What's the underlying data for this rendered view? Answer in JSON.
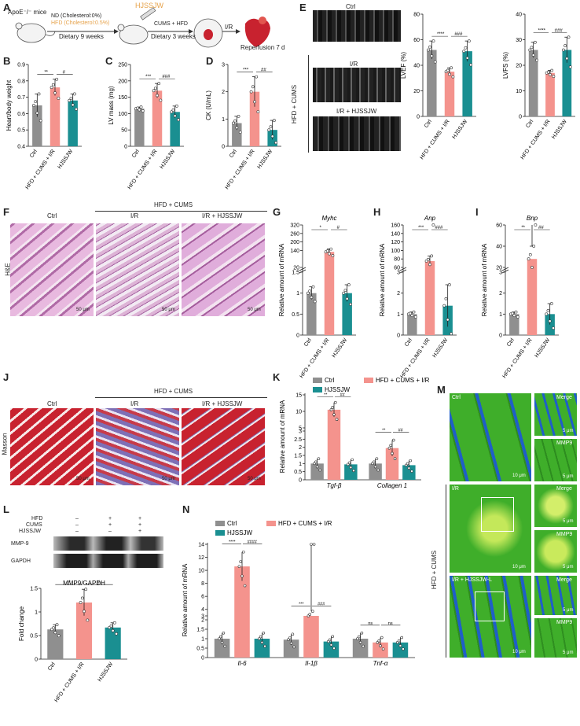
{
  "colors": {
    "ctrl": "#8f8f8f",
    "hfd": "#f4938d",
    "hjssjw": "#1a8f91",
    "green": "#3fae2a",
    "nucleus": "#1f5fc7",
    "he": "#c98bc0",
    "masson_red": "#c8222f",
    "masson_blue": "#4b4aa0"
  },
  "panels": [
    "A",
    "B",
    "C",
    "D",
    "E",
    "F",
    "G",
    "H",
    "I",
    "J",
    "K",
    "L",
    "M",
    "N"
  ],
  "schematic": {
    "mouse_label": "ApoE⁻/⁻ mice",
    "nd": "ND (Cholesterol:0%)",
    "hfd": "HFD (Cholesterol:0.5%)",
    "dietary1": "Dietary 9 weeks",
    "drug": "HJSSJW",
    "cums": "CUMS + HFD",
    "dietary2": "Dietary 3 weeks",
    "ir": "I/R",
    "reperfusion": "Reperfusion 7 d"
  },
  "echo": {
    "ctrl": "Ctrl",
    "ir": "I/R",
    "ir_hj": "I/R + HJSSJW",
    "group": "HFD + CUMS"
  },
  "he": {
    "ctrl": "Ctrl",
    "ir": "I/R",
    "ir_hj": "I/R + HJSSJW",
    "group": "HFD + CUMS",
    "stain": "H&E",
    "scale": "50 μm"
  },
  "masson": {
    "ctrl": "Ctrl",
    "ir": "I/R",
    "ir_hj": "I/R + HJSSJW",
    "group": "HFD + CUMS",
    "stain": "Masson",
    "scale": "50 μm"
  },
  "if": {
    "ctrl": "Ctrl",
    "ir": "I/R",
    "ir_hj": "I/R + HJSSJW-L",
    "group": "HFD + CUMS",
    "merge": "Merge",
    "mmp9": "MMP9",
    "scale10": "10 μm",
    "scale5": "5 μm"
  },
  "western": {
    "rows": [
      "HFD",
      "CUMS",
      "HJSSJW"
    ],
    "signs": [
      [
        "–",
        "+",
        "+"
      ],
      [
        "–",
        "+",
        "+"
      ],
      [
        "–",
        "–",
        "+"
      ]
    ],
    "bands": [
      "MMP-9",
      "GAPDH"
    ]
  },
  "xlabels": [
    "Ctrl",
    "HFD + CUMS + I/R",
    "HJSSJW"
  ],
  "legend": [
    "Ctrl",
    "HFD + CUMS + I/R",
    "HJSSJW"
  ],
  "chart_data": [
    {
      "panel": "B",
      "type": "bar",
      "ylabel": "Heart/body weight",
      "ylim": [
        0.4,
        0.9
      ],
      "yticks": [
        0.4,
        0.5,
        0.6,
        0.7,
        0.8,
        0.9
      ],
      "values": [
        0.65,
        0.76,
        0.68
      ],
      "err": [
        0.07,
        0.05,
        0.04
      ],
      "sig": [
        "**",
        "#"
      ]
    },
    {
      "panel": "C",
      "type": "bar",
      "ylabel": "LV mass (mg)",
      "ylim": [
        0,
        250
      ],
      "yticks": [
        0,
        50,
        100,
        150,
        200,
        250
      ],
      "values": [
        115,
        170,
        105
      ],
      "err": [
        5,
        22,
        18
      ],
      "sig": [
        "***",
        "###"
      ]
    },
    {
      "panel": "D",
      "type": "bar",
      "ylabel": "CK (U/mL)",
      "ylim": [
        0,
        3
      ],
      "yticks": [
        0,
        1,
        2,
        3
      ],
      "values": [
        0.85,
        2.0,
        0.6
      ],
      "err": [
        0.25,
        0.55,
        0.35
      ],
      "sig": [
        "***",
        "##"
      ]
    },
    {
      "panel": "E1",
      "type": "bar",
      "ylabel": "LVEF (%)",
      "ylim": [
        0,
        80
      ],
      "yticks": [
        0,
        20,
        40,
        60,
        80
      ],
      "values": [
        52,
        35,
        51
      ],
      "err": [
        7,
        3,
        8
      ],
      "sig": [
        "****",
        "###"
      ]
    },
    {
      "panel": "E2",
      "type": "bar",
      "ylabel": "LVFS (%)",
      "ylim": [
        0,
        40
      ],
      "yticks": [
        0,
        10,
        20,
        30,
        40
      ],
      "values": [
        26,
        17,
        26
      ],
      "err": [
        3,
        1,
        5
      ],
      "sig": [
        "****",
        "###"
      ]
    },
    {
      "panel": "G",
      "type": "bar",
      "title": "Myhc",
      "ylabel": "Relative amount of mRNA",
      "yticks": [
        0,
        0.5,
        1,
        1.5,
        20,
        140,
        200,
        260,
        320
      ],
      "values": [
        1,
        130,
        1
      ],
      "err": [
        0.15,
        20,
        0.2
      ],
      "sig": [
        "*",
        "#"
      ]
    },
    {
      "panel": "H",
      "type": "bar",
      "title": "Anp",
      "ylabel": "Relative amount of mRNA",
      "yticks": [
        0,
        1,
        2,
        3,
        60,
        80,
        100,
        120,
        140,
        160
      ],
      "values": [
        1,
        75,
        1.4
      ],
      "err": [
        0.1,
        12,
        1
      ],
      "sig": [
        "***",
        "###"
      ]
    },
    {
      "panel": "I",
      "type": "bar",
      "title": "Bnp",
      "ylabel": "Relative amount of mRNA",
      "yticks": [
        0,
        1,
        2,
        3,
        20,
        40,
        60
      ],
      "values": [
        1,
        28,
        1
      ],
      "err": [
        0.1,
        12,
        0.5
      ],
      "sig": [
        "**",
        "##"
      ]
    },
    {
      "panel": "K",
      "type": "bar",
      "ylabel": "Relative amount of mRNA",
      "categories": [
        "Tgf-β",
        "Collagen 1"
      ],
      "yticks": [
        0,
        0.5,
        1,
        1.5,
        2,
        2.5,
        3,
        5,
        10,
        15
      ],
      "series": [
        {
          "name": "Ctrl",
          "values": [
            1,
            1
          ]
        },
        {
          "name": "HFD + CUMS + I/R",
          "values": [
            10.5,
            1.95
          ]
        },
        {
          "name": "HJSSJW",
          "values": [
            0.95,
            0.9
          ]
        }
      ],
      "sig": [
        [
          "**",
          "##"
        ],
        [
          "**",
          "##"
        ]
      ]
    },
    {
      "panel": "L",
      "type": "bar",
      "title": "MMP9/GAPDH",
      "ylabel": "Fold change",
      "ylim": [
        0,
        1.5
      ],
      "yticks": [
        0,
        0.5,
        1.0,
        1.5
      ],
      "values": [
        0.63,
        1.2,
        0.67
      ],
      "err": [
        0.1,
        0.28,
        0.1
      ],
      "sig": [
        "*",
        "#"
      ]
    },
    {
      "panel": "N",
      "type": "bar",
      "ylabel": "Relative amount of mRNA",
      "categories": [
        "Il-6",
        "Il-1β",
        "Tnf-α"
      ],
      "yticks": [
        0,
        0.5,
        1,
        1.5,
        2,
        3,
        4,
        6,
        8,
        10,
        12,
        14
      ],
      "series": [
        {
          "name": "Ctrl",
          "values": [
            1,
            0.95,
            1
          ]
        },
        {
          "name": "HFD + CUMS + I/R",
          "values": [
            10.6,
            3,
            0.8
          ]
        },
        {
          "name": "HJSSJW",
          "values": [
            1,
            0.85,
            0.8
          ]
        }
      ],
      "sig": [
        [
          "****",
          "####"
        ],
        [
          "***",
          "###"
        ],
        [
          "ns",
          "ns"
        ]
      ]
    }
  ]
}
